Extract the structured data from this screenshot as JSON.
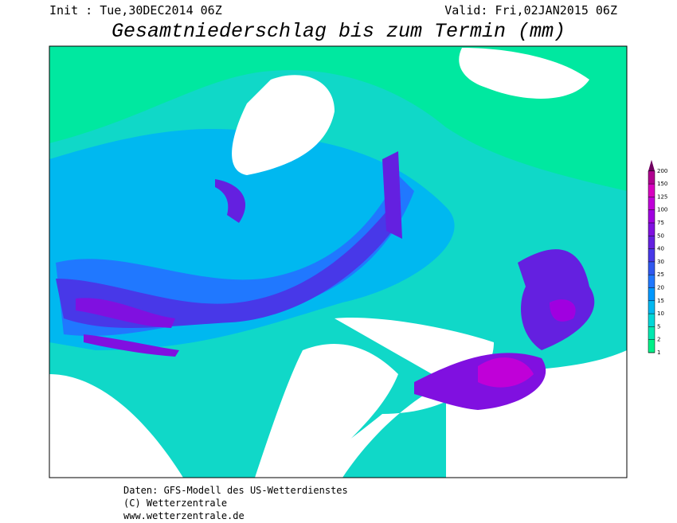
{
  "header": {
    "init": "Init : Tue,30DEC2014 06Z",
    "valid": "Valid: Fri,02JAN2015 06Z",
    "title": "Gesamtniederschlag bis zum Termin (mm)"
  },
  "legend": {
    "ticks": [
      1,
      2,
      5,
      10,
      15,
      20,
      25,
      30,
      40,
      50,
      75,
      100,
      125,
      150,
      200
    ],
    "colors": [
      "#00f088",
      "#00e8b0",
      "#00d8d8",
      "#00b8f0",
      "#0098ff",
      "#2078ff",
      "#3058f0",
      "#4838e8",
      "#6420e0",
      "#8010e0",
      "#a000e0",
      "#c000d8",
      "#d800c0",
      "#b00090",
      "#700060"
    ]
  },
  "footer": [
    "Daten: GFS-Modell des US-Wetterdienstes",
    "(C) Wetterzentrale",
    "www.wetterzentrale.de"
  ]
}
